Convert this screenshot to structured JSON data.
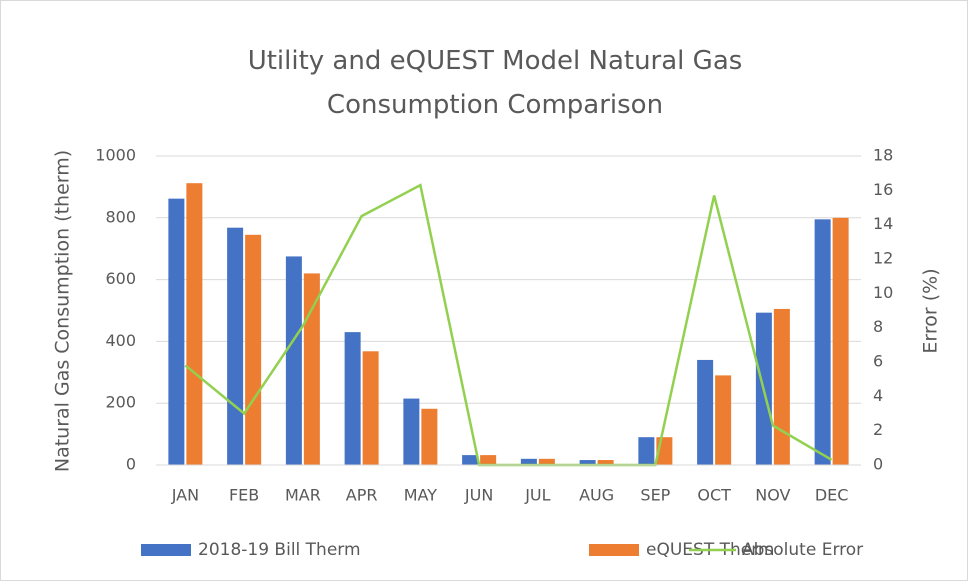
{
  "chart_data": {
    "type": "bar",
    "title": "Utility and eQUEST Model Natural Gas Consumption Comparison",
    "y_label": "Natural Gas Consumption (therm)",
    "y2_label": "Error (%)",
    "categories": [
      "JAN",
      "FEB",
      "MAR",
      "APR",
      "MAY",
      "JUN",
      "JUL",
      "AUG",
      "SEP",
      "OCT",
      "NOV",
      "DEC"
    ],
    "series": [
      {
        "name": "2018-19 Bill Therm",
        "color": "#4472c4",
        "type": "bar",
        "values": [
          862,
          768,
          675,
          430,
          215,
          32,
          20,
          16,
          90,
          340,
          493,
          795
        ]
      },
      {
        "name": "eQUEST Therm",
        "color": "#ed7d31",
        "type": "bar",
        "values": [
          912,
          745,
          620,
          368,
          182,
          32,
          20,
          16,
          90,
          290,
          505,
          800
        ]
      },
      {
        "name": "Absolute Error",
        "color": "#92d050",
        "type": "line",
        "axis": "y2",
        "values": [
          5.8,
          3.0,
          8.1,
          14.5,
          16.3,
          0,
          0,
          0,
          0,
          15.7,
          2.3,
          0.3
        ]
      }
    ],
    "ylim": [
      0,
      1000
    ],
    "yticks": [
      0,
      200,
      400,
      600,
      800,
      1000
    ],
    "y2lim": [
      0,
      18
    ],
    "y2ticks": [
      0,
      2,
      4,
      6,
      8,
      10,
      12,
      14,
      16,
      18
    ],
    "grid": true,
    "legend": "bottom"
  }
}
